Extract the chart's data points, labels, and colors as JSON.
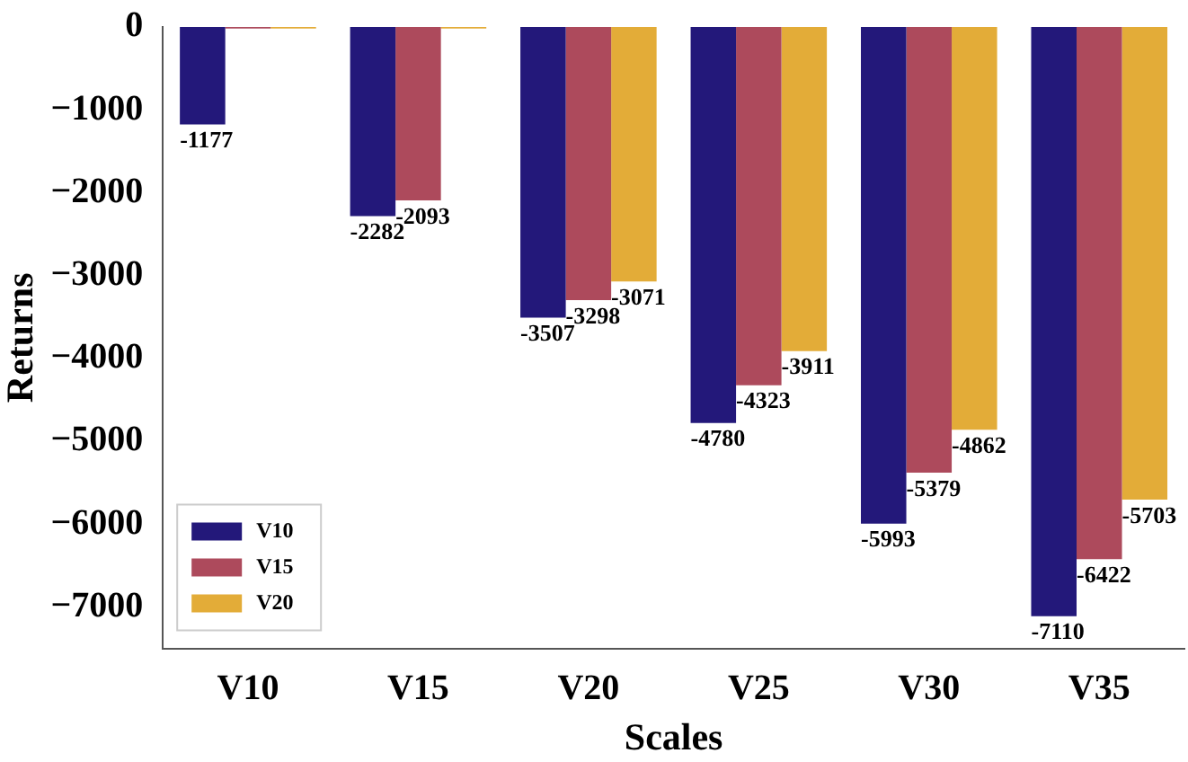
{
  "chart_data": {
    "type": "bar",
    "xlabel": "Scales",
    "ylabel": "Returns",
    "categories": [
      "V10",
      "V15",
      "V20",
      "V25",
      "V30",
      "V35"
    ],
    "series": [
      {
        "name": "V10",
        "color": "#23187a",
        "values": [
          -1177,
          -2282,
          -3507,
          -4780,
          -5993,
          -7110
        ],
        "value_labels": [
          "-1177",
          "-2282",
          "-3507",
          "-4780",
          "-5993",
          "-7110"
        ]
      },
      {
        "name": "V15",
        "color": "#ad4a5c",
        "values": [
          -20,
          -2093,
          -3298,
          -4323,
          -5379,
          -6422
        ],
        "value_labels": [
          null,
          "-2093",
          "-3298",
          "-4323",
          "-5379",
          "-6422"
        ]
      },
      {
        "name": "V20",
        "color": "#e3ac38",
        "values": [
          -20,
          -20,
          -3071,
          -3911,
          -4862,
          -5703
        ],
        "value_labels": [
          null,
          null,
          "-3071",
          "-3911",
          "-4862",
          "-5703"
        ]
      }
    ],
    "ylim": [
      -7500,
      0
    ],
    "yticks": [
      -7000,
      -6000,
      -5000,
      -4000,
      -3000,
      -2000,
      -1000,
      0
    ],
    "grid": false,
    "legend": "bottom left"
  }
}
